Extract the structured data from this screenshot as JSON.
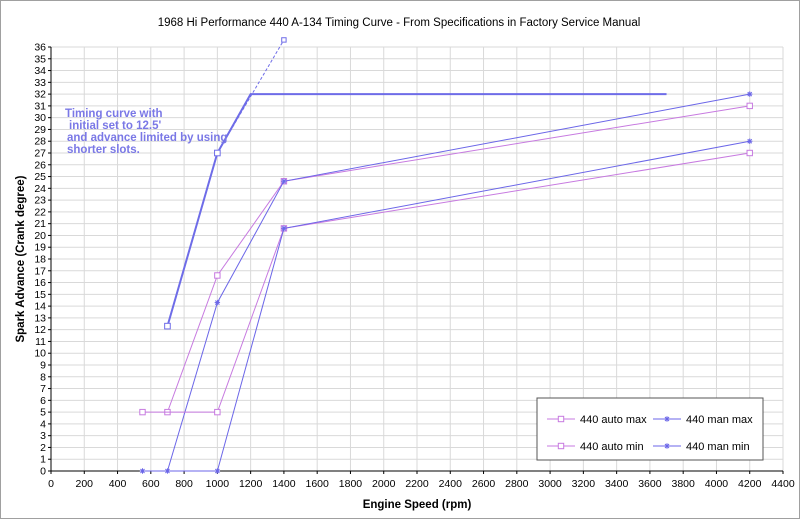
{
  "chart_data": {
    "type": "line",
    "title": "1968 Hi Performance 440 A-134 Timing Curve - From Specifications in Factory Service Manual",
    "xlabel": "Engine Speed (rpm)",
    "ylabel": "Spark Advance (Crank degree)",
    "xlim": [
      0,
      4400
    ],
    "ylim": [
      0,
      36
    ],
    "x_ticks": [
      0,
      200,
      400,
      600,
      800,
      1000,
      1200,
      1400,
      1600,
      1800,
      2000,
      2200,
      2400,
      2600,
      2800,
      3000,
      3200,
      3400,
      3600,
      3800,
      4000,
      4200,
      4400
    ],
    "y_ticks": [
      0,
      1,
      2,
      3,
      4,
      5,
      6,
      7,
      8,
      9,
      10,
      11,
      12,
      13,
      14,
      15,
      16,
      17,
      18,
      19,
      20,
      21,
      22,
      23,
      24,
      25,
      26,
      27,
      28,
      29,
      30,
      31,
      32,
      33,
      34,
      35,
      36
    ],
    "grid": true,
    "legend_position": "bottom-right",
    "series": [
      {
        "name": "440 auto max",
        "color": "#c77ae0",
        "marker": "square",
        "points": [
          [
            700,
            5
          ],
          [
            1000,
            16.6
          ],
          [
            1400,
            24.6
          ],
          [
            4200,
            31
          ]
        ]
      },
      {
        "name": "440 man max",
        "color": "#6b66e8",
        "marker": "star",
        "points": [
          [
            700,
            0
          ],
          [
            1000,
            14.3
          ],
          [
            1400,
            24.6
          ],
          [
            4200,
            32
          ]
        ]
      },
      {
        "name": "440 auto min",
        "color": "#c77ae0",
        "marker": "square",
        "points": [
          [
            550,
            5
          ],
          [
            1000,
            5
          ],
          [
            1400,
            20.6
          ],
          [
            4200,
            27
          ]
        ]
      },
      {
        "name": "440 man min",
        "color": "#6b66e8",
        "marker": "star",
        "points": [
          [
            550,
            0
          ],
          [
            1000,
            0
          ],
          [
            1400,
            20.6
          ],
          [
            4200,
            28
          ]
        ]
      }
    ],
    "custom_curve": {
      "color": "#6e6ce8",
      "points": [
        [
          700,
          12.3
        ],
        [
          1000,
          27
        ],
        [
          1200,
          32
        ],
        [
          3700,
          32
        ]
      ],
      "dashed_extension": [
        [
          1000,
          27
        ],
        [
          1400,
          36.6
        ]
      ]
    },
    "annotation": [
      "Timing curve with",
      " initial set to 12.5'",
      "and advance limited by using",
      "shorter slots."
    ]
  }
}
